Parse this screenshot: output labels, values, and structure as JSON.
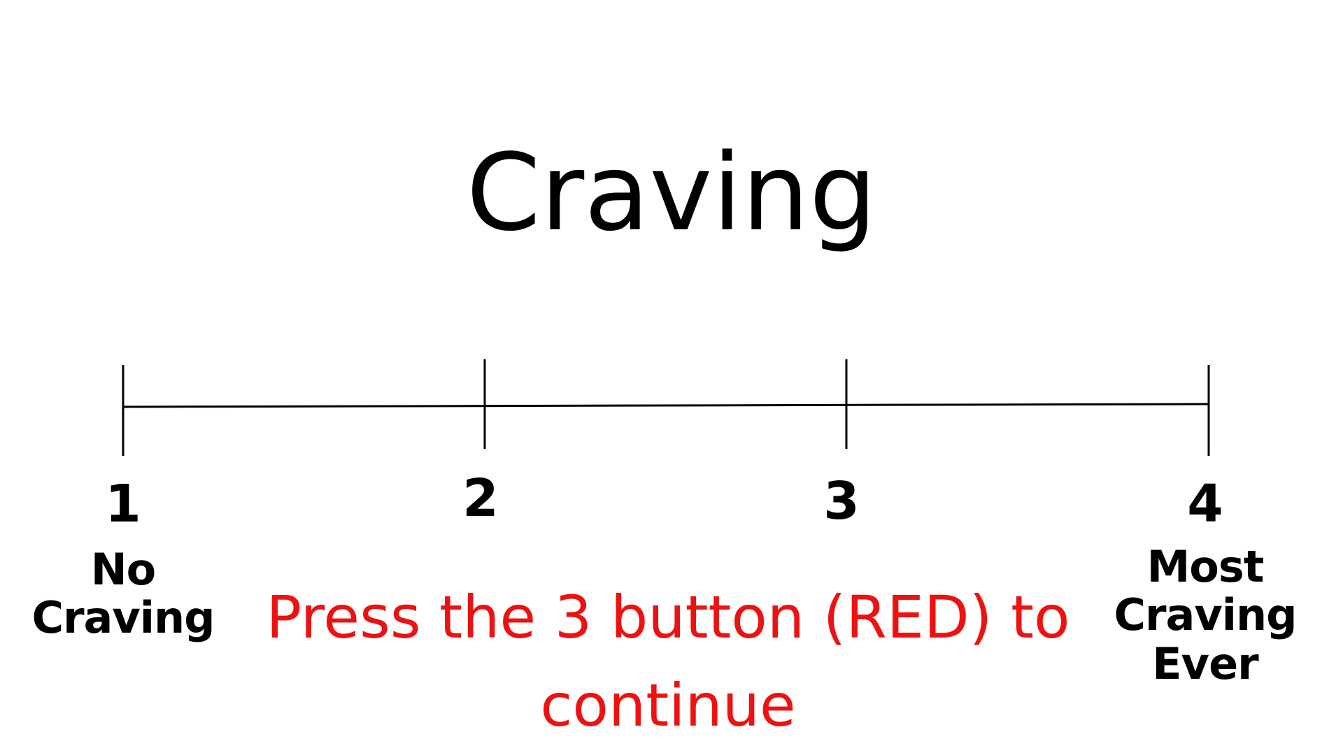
{
  "screen": {
    "title": "Craving",
    "instruction": "Press the 3 button (RED) to continue",
    "instruction_color": "#ee1111",
    "text_color": "#000000",
    "background_color": "#ffffff"
  },
  "scale": {
    "points": [
      {
        "value": "1",
        "label": "No Craving"
      },
      {
        "value": "2",
        "label": ""
      },
      {
        "value": "3",
        "label": ""
      },
      {
        "value": "4",
        "label": "Most Craving Ever"
      }
    ]
  }
}
